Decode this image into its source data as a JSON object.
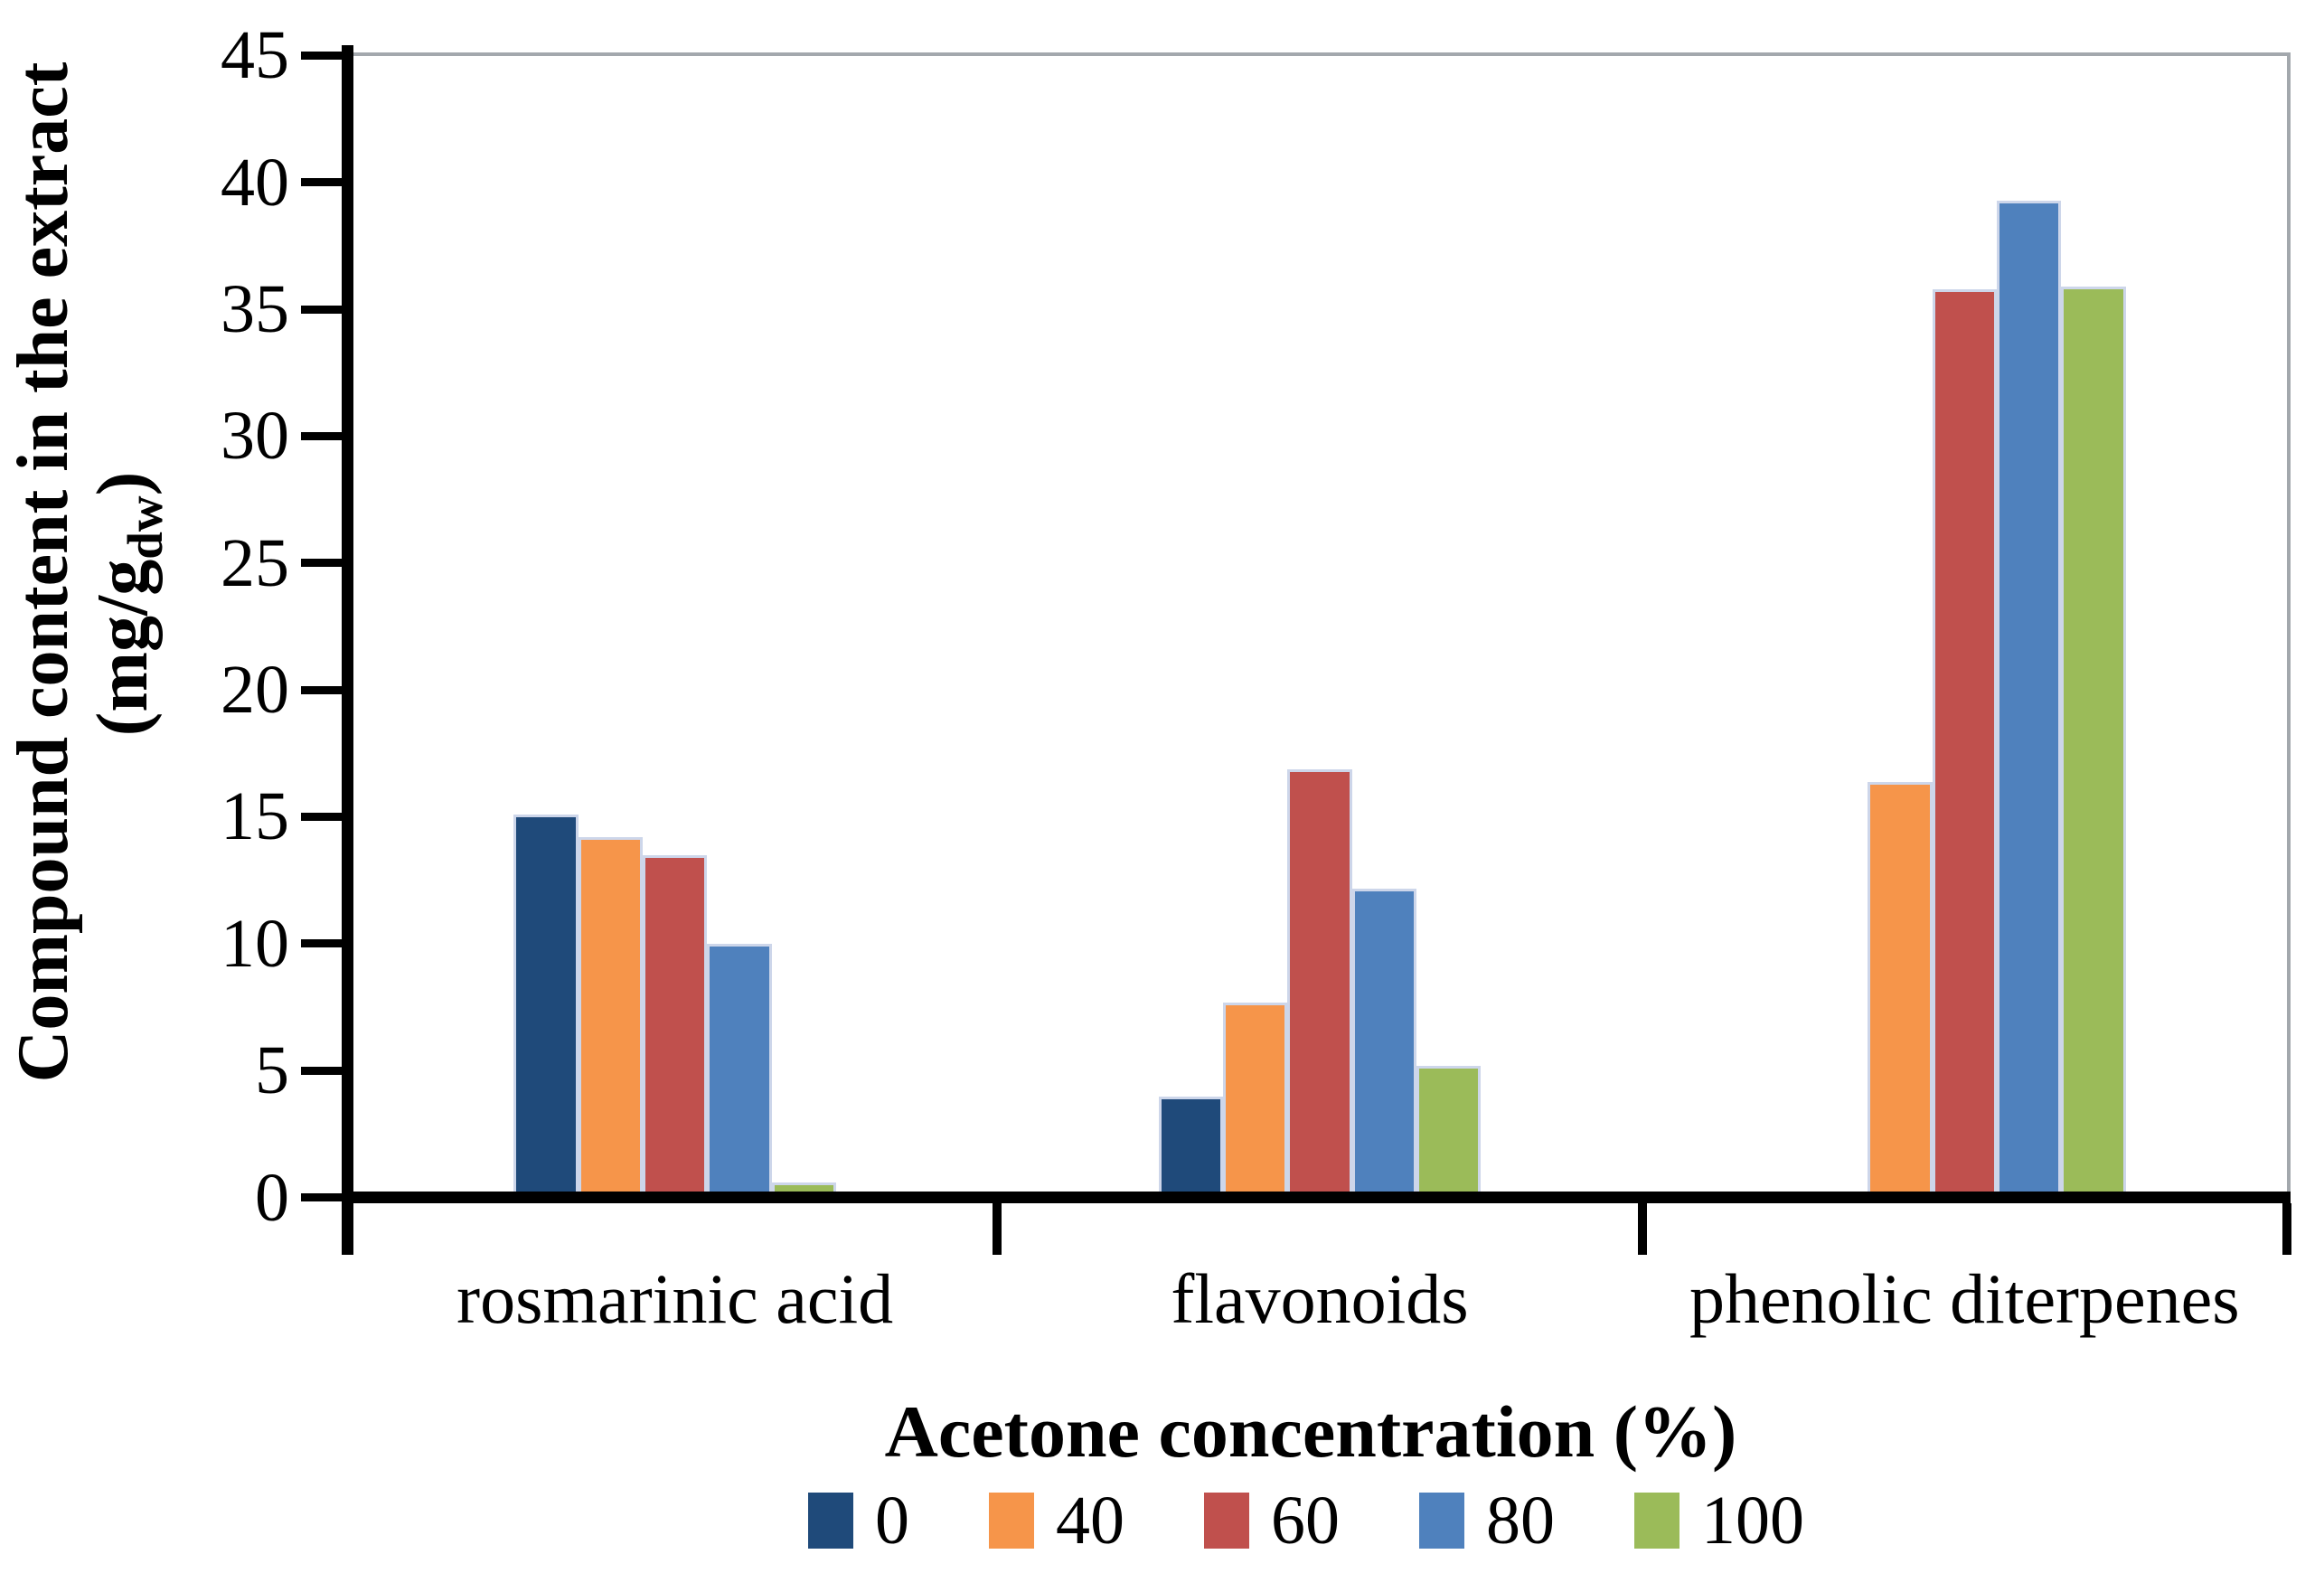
{
  "chart_data": {
    "type": "bar",
    "title": "",
    "categories": [
      "rosmarinic acid",
      "flavonoids",
      "phenolic diterpenes"
    ],
    "series": [
      {
        "name": "0",
        "color": "#1F4A7A",
        "values": [
          15.1,
          4.0,
          0
        ]
      },
      {
        "name": "40",
        "color": "#F6954A",
        "values": [
          14.2,
          7.7,
          16.4
        ]
      },
      {
        "name": "60",
        "color": "#C0504D",
        "values": [
          13.5,
          16.9,
          35.8
        ]
      },
      {
        "name": "80",
        "color": "#4F81BD",
        "values": [
          10.0,
          12.2,
          39.3
        ]
      },
      {
        "name": "100",
        "color": "#9BBB59",
        "values": [
          0.6,
          5.2,
          35.9
        ]
      }
    ],
    "xlabel": "Acetone concentration (%)",
    "ylabel_line1": "Compound content in the extract",
    "ylabel_line2_prefix": "(mg/g",
    "ylabel_line2_sub": "dw",
    "ylabel_line2_suffix": ")",
    "ylim": [
      0,
      45
    ],
    "ytick_step": 5,
    "ytick_labels": [
      "0",
      "5",
      "10",
      "15",
      "20",
      "25",
      "30",
      "35",
      "40",
      "45"
    ],
    "legend_labels": [
      "0",
      "40",
      "60",
      "80",
      "100"
    ],
    "legend_position": "bottom",
    "grid": false,
    "axis_color": "#000000",
    "frame_color": "#a3a8ad",
    "bar_edge_color": "#CDD6EA"
  }
}
